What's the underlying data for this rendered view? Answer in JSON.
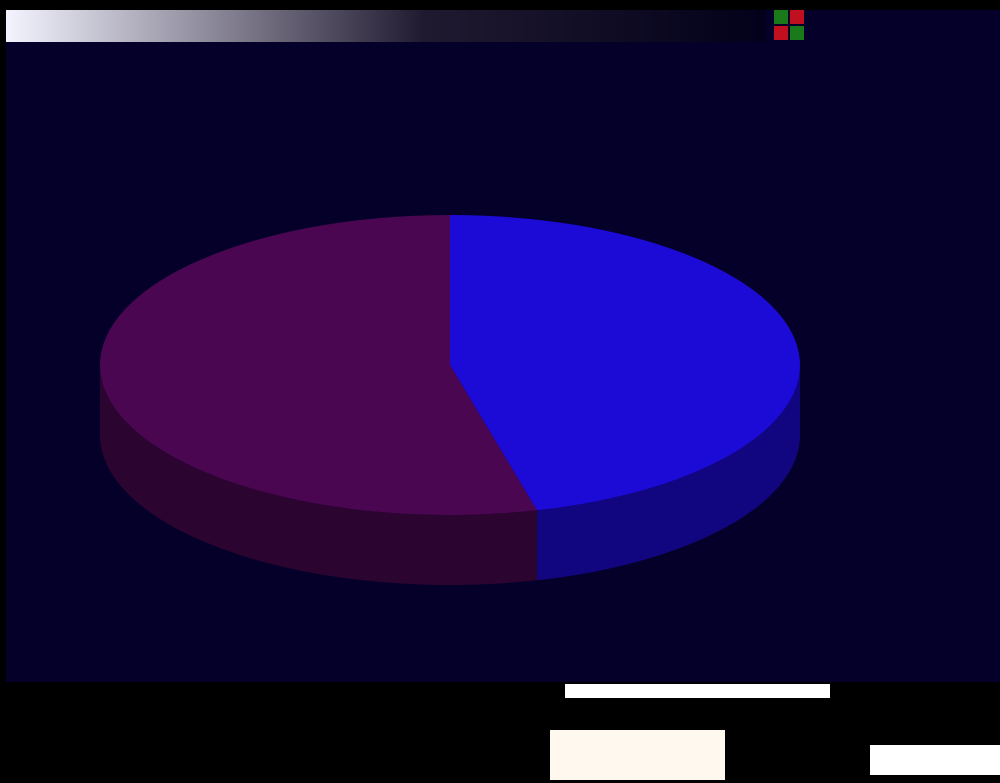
{
  "chart_data": {
    "type": "pie",
    "values": [
      46,
      54
    ],
    "colors": [
      "#1c0ad6",
      "#4a0650"
    ]
  }
}
